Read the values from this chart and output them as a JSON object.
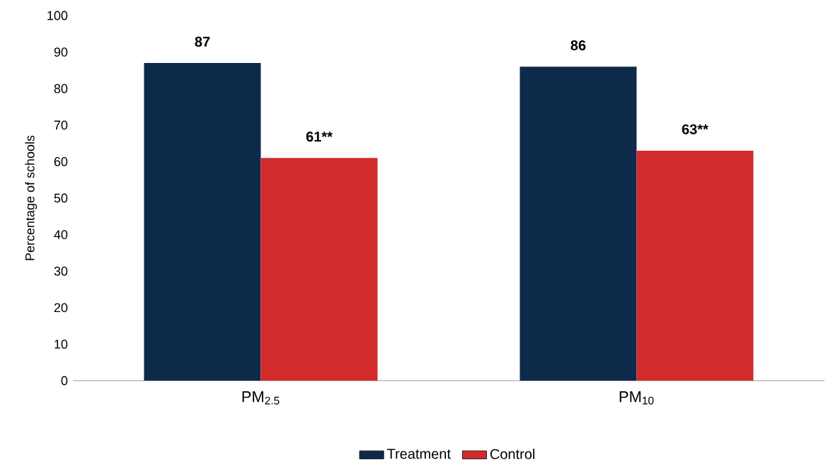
{
  "chart_data": {
    "type": "bar",
    "ylabel": "Percentage of schools",
    "categories": [
      "PM$_{2.5}$",
      "PM$_{10}$"
    ],
    "series": [
      {
        "name": "Treatment",
        "color": "#0e2a4a",
        "values": [
          87,
          86
        ],
        "value_labels": [
          "87",
          "86"
        ]
      },
      {
        "name": "Control",
        "color": "#d12b2b",
        "values": [
          61,
          63
        ],
        "value_labels": [
          "61**",
          "63**"
        ]
      }
    ],
    "ylim": [
      0,
      100
    ],
    "yticks": [
      0,
      10,
      20,
      30,
      40,
      50,
      60,
      70,
      80,
      90,
      100
    ],
    "legend": "bottom"
  }
}
